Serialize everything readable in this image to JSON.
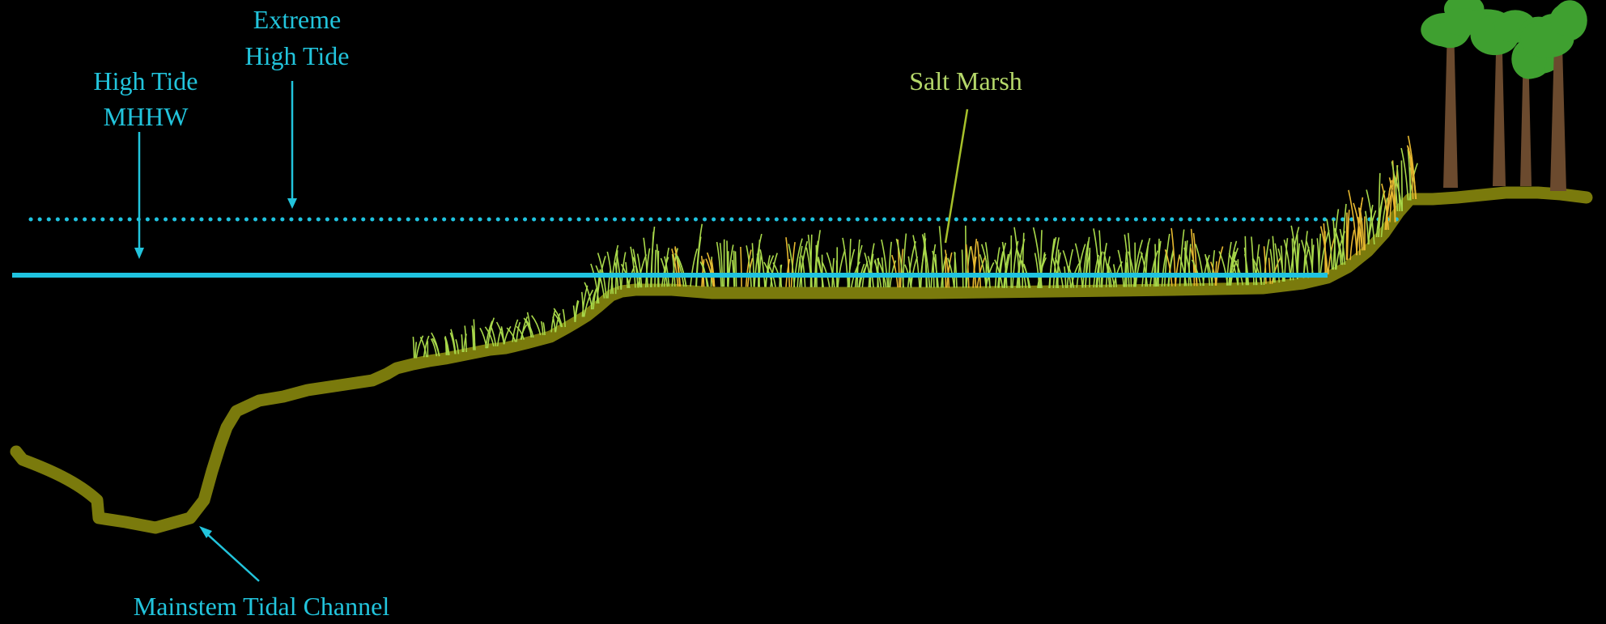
{
  "labels": {
    "extreme_high_tide_line1": "Extreme",
    "extreme_high_tide_line2": "High Tide",
    "high_tide_line1": "High Tide",
    "high_tide_line2": "MHHW",
    "salt_marsh": "Salt Marsh",
    "mainstem_channel": "Mainstem Tidal Channel"
  },
  "colors": {
    "background": "#000000",
    "tide": "#1fc3e0",
    "label_tide": "#22c4dc",
    "label_marsh": "#b5d86a",
    "ground": "#7a7a0c",
    "grass": "#a8d84a",
    "grass_dry": "#e6b830",
    "tree_trunk": "#6b4a2e",
    "tree_leaves": "#3fa030"
  },
  "icons": {
    "grass": "marsh-grass-icon",
    "tree": "tree-icon"
  }
}
